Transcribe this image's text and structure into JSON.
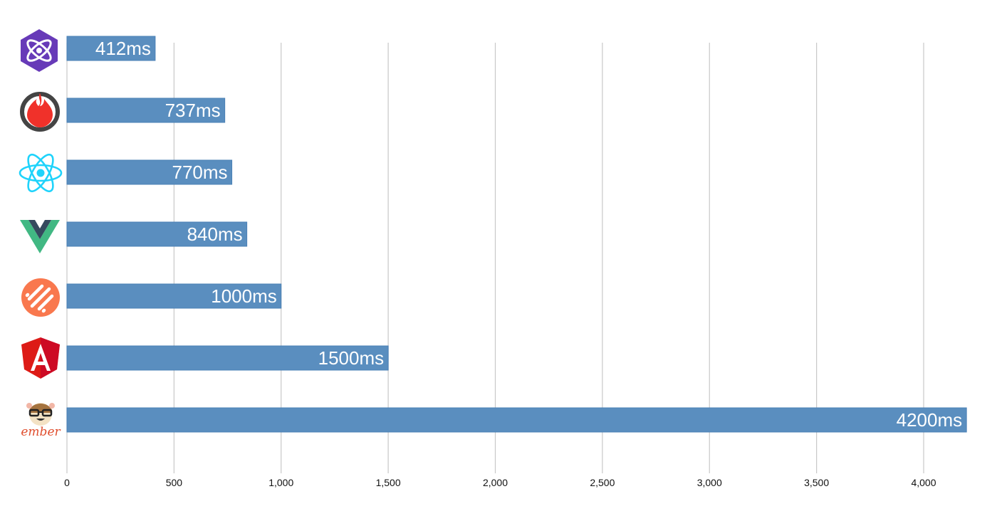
{
  "chart_data": {
    "type": "bar",
    "orientation": "horizontal",
    "title": "",
    "xlabel": "",
    "ylabel": "",
    "xlim": [
      0,
      4200
    ],
    "grid": true,
    "ticks": [
      0,
      500,
      1000,
      1500,
      2000,
      2500,
      3000,
      3500,
      4000
    ],
    "tick_labels": [
      "0",
      "500",
      "1,000",
      "1,500",
      "2,000",
      "2,500",
      "3,000",
      "3,500",
      "4,000"
    ],
    "categories": [
      "preact-logo-icon",
      "inferno-logo-icon",
      "react-logo-icon",
      "vue-logo-icon",
      "striped-orange-logo-icon",
      "angular-logo-icon",
      "ember-logo-icon"
    ],
    "values": [
      412,
      737,
      770,
      840,
      1000,
      1500,
      4200
    ],
    "data_labels": [
      "412ms",
      "737ms",
      "770ms",
      "840ms",
      "1000ms",
      "1500ms",
      "4200ms"
    ],
    "bar_color": "#5a8ebf",
    "ember_logo_text": "ember"
  }
}
